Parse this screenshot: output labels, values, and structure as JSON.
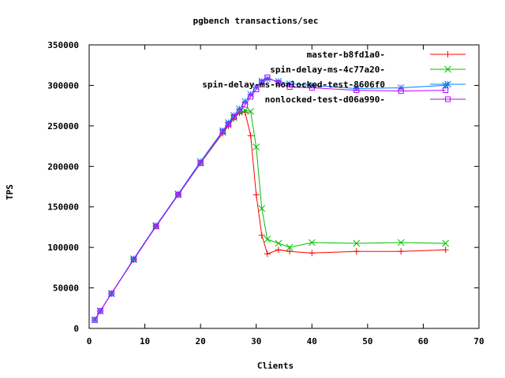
{
  "chart_data": {
    "type": "line",
    "title": "pgbench transactions/sec",
    "xlabel": "Clients",
    "ylabel": "TPS",
    "xlim": [
      0,
      70
    ],
    "ylim": [
      0,
      350000
    ],
    "xticks": [
      0,
      10,
      20,
      30,
      40,
      50,
      60,
      70
    ],
    "yticks": [
      0,
      50000,
      100000,
      150000,
      200000,
      250000,
      300000,
      350000
    ],
    "grid": false,
    "legend_position": "top-right",
    "series": [
      {
        "name": "master-b8fd1a0-",
        "color": "#ff0000",
        "marker": "plus",
        "x": [
          1,
          2,
          4,
          8,
          12,
          16,
          20,
          24,
          25,
          26,
          27,
          28,
          29,
          30,
          31,
          32,
          34,
          36,
          40,
          48,
          56,
          64
        ],
        "y": [
          10500,
          21500,
          43000,
          85000,
          126000,
          165000,
          204000,
          241000,
          250000,
          259000,
          266000,
          267000,
          238000,
          165000,
          115000,
          92000,
          97000,
          95000,
          93000,
          95000,
          95000,
          97000
        ]
      },
      {
        "name": "spin-delay-ms-4c77a20-",
        "color": "#00c000",
        "marker": "cross",
        "x": [
          1,
          2,
          4,
          8,
          12,
          16,
          20,
          24,
          25,
          26,
          27,
          28,
          29,
          30,
          31,
          32,
          34,
          36,
          40,
          48,
          56,
          64
        ],
        "y": [
          10500,
          21500,
          43000,
          85000,
          126000,
          165000,
          204000,
          242000,
          251000,
          260000,
          267000,
          269000,
          268000,
          224000,
          148000,
          110000,
          105000,
          100000,
          106000,
          105000,
          106000,
          105000
        ]
      },
      {
        "name": "spin-delay-ms-nonlocked-test-8606f0",
        "color": "#0080ff",
        "marker": "star",
        "x": [
          1,
          2,
          4,
          8,
          12,
          16,
          20,
          24,
          25,
          26,
          27,
          28,
          29,
          30,
          31,
          32,
          34,
          36,
          40,
          48,
          56,
          64
        ],
        "y": [
          10500,
          21500,
          43000,
          86000,
          127000,
          166000,
          206000,
          244000,
          254000,
          263000,
          271000,
          280000,
          289000,
          298000,
          305000,
          308000,
          305000,
          302000,
          300000,
          296000,
          297000,
          300000
        ]
      },
      {
        "name": "nonlocked-test-d06a990-",
        "color": "#c000ff",
        "marker": "square",
        "x": [
          1,
          2,
          4,
          8,
          12,
          16,
          20,
          24,
          25,
          26,
          27,
          28,
          29,
          30,
          31,
          32,
          34,
          36,
          40,
          48,
          56,
          64
        ],
        "y": [
          10500,
          21500,
          43000,
          85000,
          126000,
          165000,
          204000,
          243000,
          252000,
          261000,
          268000,
          276000,
          286000,
          295000,
          304000,
          310000,
          303000,
          298000,
          297000,
          294000,
          293000,
          294000
        ]
      }
    ]
  }
}
